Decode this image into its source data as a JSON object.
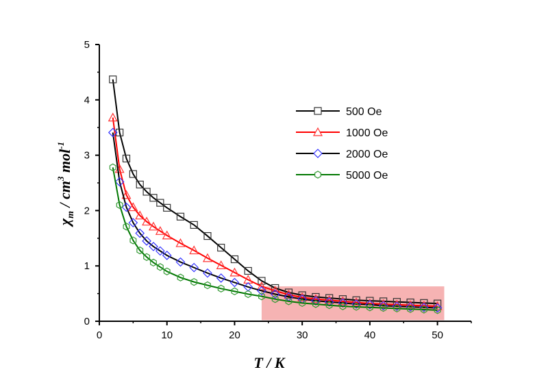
{
  "chart_data": {
    "type": "line",
    "title": "",
    "xlabel": "T / K",
    "ylabel_parts": {
      "chi": "χ",
      "sub": "m",
      "rest": " / cm",
      "sup3": "3",
      "mol": " mol",
      "supm1": "-1"
    },
    "xlim": [
      0,
      55
    ],
    "ylim": [
      0,
      5
    ],
    "xticks": [
      0,
      10,
      20,
      30,
      40,
      50
    ],
    "yticks": [
      0,
      1,
      2,
      3,
      4,
      5
    ],
    "grid": false,
    "legend_placement": "top-right",
    "highlight_region": {
      "x": [
        24,
        51
      ],
      "y": [
        0.02,
        0.63
      ],
      "color": "#f4a6a6"
    },
    "x": [
      2,
      3,
      4,
      5,
      6,
      7,
      8,
      9,
      10,
      12,
      14,
      16,
      18,
      20,
      22,
      24,
      26,
      28,
      30,
      32,
      34,
      36,
      38,
      40,
      42,
      44,
      46,
      48,
      50
    ],
    "series": [
      {
        "name": "500 Oe",
        "marker": "square",
        "line_color": "#000000",
        "marker_color": "#333333",
        "values": [
          4.37,
          3.41,
          2.94,
          2.66,
          2.47,
          2.34,
          2.23,
          2.14,
          2.05,
          1.89,
          1.74,
          1.54,
          1.33,
          1.12,
          0.91,
          0.73,
          0.6,
          0.52,
          0.47,
          0.44,
          0.42,
          0.4,
          0.38,
          0.37,
          0.36,
          0.35,
          0.34,
          0.33,
          0.32
        ]
      },
      {
        "name": "1000 Oe",
        "marker": "triangle",
        "line_color": "#ff0000",
        "marker_color": "#ff3333",
        "values": [
          3.68,
          2.75,
          2.28,
          2.06,
          1.91,
          1.8,
          1.71,
          1.63,
          1.55,
          1.41,
          1.28,
          1.14,
          1.01,
          0.88,
          0.75,
          0.63,
          0.55,
          0.48,
          0.43,
          0.4,
          0.38,
          0.36,
          0.34,
          0.32,
          0.31,
          0.3,
          0.29,
          0.28,
          0.27
        ]
      },
      {
        "name": "2000 Oe",
        "marker": "diamond",
        "line_color": "#000000",
        "marker_color": "#3333ff",
        "values": [
          3.41,
          2.52,
          2.06,
          1.78,
          1.59,
          1.45,
          1.35,
          1.27,
          1.19,
          1.07,
          0.97,
          0.87,
          0.78,
          0.7,
          0.62,
          0.55,
          0.49,
          0.44,
          0.4,
          0.37,
          0.35,
          0.33,
          0.31,
          0.3,
          0.28,
          0.27,
          0.26,
          0.25,
          0.24
        ]
      },
      {
        "name": "5000 Oe",
        "marker": "hexagon",
        "line_color": "#007700",
        "marker_color": "#339933",
        "values": [
          2.78,
          2.1,
          1.71,
          1.46,
          1.28,
          1.16,
          1.06,
          0.98,
          0.9,
          0.79,
          0.71,
          0.65,
          0.59,
          0.54,
          0.49,
          0.45,
          0.4,
          0.36,
          0.33,
          0.31,
          0.29,
          0.27,
          0.26,
          0.25,
          0.24,
          0.23,
          0.22,
          0.21,
          0.2
        ]
      }
    ]
  }
}
